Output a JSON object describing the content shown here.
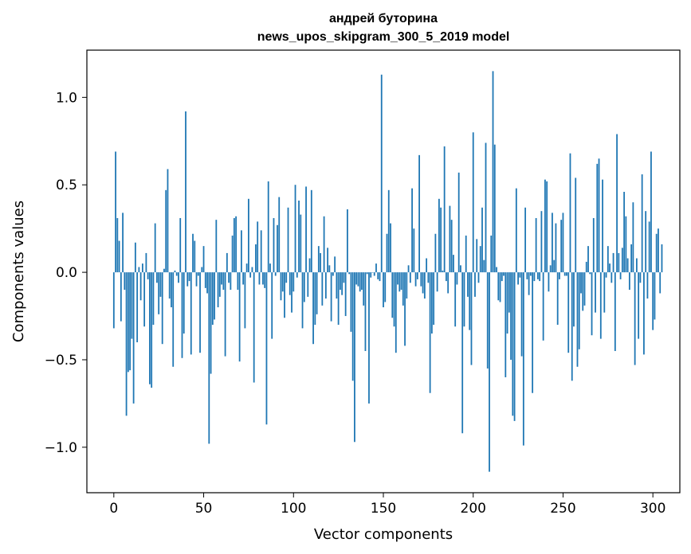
{
  "chart_data": {
    "type": "bar",
    "title": [
      "андрей буторина",
      "news_upos_skipgram_300_5_2019 model"
    ],
    "xlabel": "Vector components",
    "ylabel": "Components values",
    "xlim": [
      -15,
      315
    ],
    "ylim": [
      -1.26,
      1.27
    ],
    "xticks": [
      0,
      50,
      100,
      150,
      200,
      250,
      300
    ],
    "xtick_labels": [
      "0",
      "50",
      "100",
      "150",
      "200",
      "250",
      "300"
    ],
    "yticks": [
      -1.0,
      -0.5,
      0.0,
      0.5,
      1.0
    ],
    "ytick_labels": [
      "−1.0",
      "−0.5",
      "0.0",
      "0.5",
      "1.0"
    ],
    "bar_color": "#1f77b4",
    "grid": false,
    "values": [
      -0.32,
      0.69,
      0.31,
      0.18,
      -0.28,
      0.34,
      -0.1,
      -0.82,
      -0.57,
      -0.56,
      -0.38,
      -0.75,
      0.17,
      -0.4,
      0.03,
      -0.16,
      0.05,
      -0.31,
      0.11,
      -0.04,
      -0.64,
      -0.66,
      -0.3,
      0.28,
      -0.06,
      -0.24,
      -0.14,
      -0.41,
      0.02,
      0.47,
      0.59,
      -0.15,
      -0.2,
      -0.54,
      0.01,
      -0.02,
      -0.06,
      0.31,
      -0.49,
      -0.35,
      0.92,
      -0.08,
      -0.05,
      -0.47,
      0.22,
      0.18,
      -0.08,
      -0.02,
      -0.46,
      0.03,
      0.15,
      -0.09,
      -0.12,
      -0.98,
      -0.58,
      -0.3,
      -0.27,
      0.3,
      -0.2,
      -0.14,
      -0.07,
      -0.1,
      -0.48,
      0.11,
      -0.06,
      -0.1,
      0.21,
      0.31,
      0.32,
      -0.1,
      -0.51,
      0.24,
      -0.07,
      -0.32,
      0.05,
      0.42,
      -0.03,
      0.03,
      -0.63,
      0.16,
      0.29,
      -0.07,
      0.24,
      -0.07,
      -0.09,
      -0.87,
      0.52,
      0.05,
      -0.38,
      0.31,
      -0.02,
      0.27,
      0.43,
      -0.16,
      -0.11,
      -0.26,
      -0.06,
      0.37,
      -0.13,
      -0.23,
      -0.11,
      0.5,
      -0.03,
      0.41,
      0.33,
      -0.32,
      -0.17,
      0.49,
      -0.14,
      0.08,
      0.47,
      -0.41,
      -0.3,
      -0.24,
      0.15,
      0.11,
      -0.19,
      0.32,
      -0.15,
      0.14,
      0.04,
      -0.28,
      -0.02,
      0.09,
      -0.15,
      -0.3,
      -0.1,
      -0.13,
      -0.06,
      -0.25,
      0.36,
      -0.01,
      -0.34,
      -0.62,
      -0.97,
      -0.07,
      -0.08,
      -0.11,
      -0.1,
      -0.19,
      -0.45,
      -0.01,
      -0.75,
      -0.03,
      0.0,
      -0.02,
      0.05,
      -0.04,
      -0.05,
      1.13,
      -0.2,
      -0.17,
      0.22,
      0.47,
      0.28,
      -0.26,
      -0.31,
      -0.46,
      -0.07,
      -0.11,
      -0.1,
      -0.19,
      -0.42,
      -0.15,
      0.04,
      -0.06,
      0.48,
      0.25,
      -0.08,
      -0.04,
      0.67,
      -0.08,
      -0.12,
      -0.15,
      0.08,
      -0.06,
      -0.69,
      -0.35,
      -0.3,
      0.22,
      -0.11,
      0.42,
      0.37,
      0.01,
      0.72,
      -0.05,
      -0.12,
      0.38,
      0.3,
      0.1,
      -0.31,
      -0.07,
      0.57,
      0.04,
      -0.92,
      -0.31,
      0.21,
      -0.14,
      -0.33,
      -0.53,
      0.8,
      -0.14,
      0.19,
      -0.06,
      0.15,
      0.37,
      0.07,
      0.74,
      -0.55,
      -1.14,
      0.21,
      1.15,
      0.73,
      0.03,
      -0.16,
      -0.17,
      -0.05,
      -0.02,
      -0.6,
      -0.35,
      -0.23,
      -0.5,
      -0.82,
      -0.85,
      0.48,
      -0.07,
      -0.03,
      -0.48,
      -0.99,
      0.37,
      -0.04,
      -0.13,
      -0.02,
      -0.69,
      -0.05,
      0.31,
      -0.04,
      -0.05,
      0.35,
      -0.39,
      0.53,
      0.52,
      -0.11,
      0.04,
      0.34,
      0.07,
      0.28,
      -0.3,
      -0.04,
      0.3,
      0.34,
      -0.02,
      -0.02,
      -0.46,
      0.68,
      -0.62,
      -0.31,
      0.54,
      -0.54,
      -0.44,
      -0.12,
      -0.22,
      -0.19,
      0.06,
      0.15,
      -0.01,
      -0.36,
      0.31,
      -0.23,
      0.62,
      0.65,
      -0.38,
      0.53,
      -0.23,
      -0.03,
      0.15,
      0.05,
      -0.06,
      0.11,
      -0.45,
      0.79,
      0.11,
      -0.04,
      0.14,
      0.46,
      0.32,
      0.08,
      -0.1,
      0.16,
      0.4,
      -0.53,
      0.08,
      -0.38,
      -0.06,
      0.56,
      -0.47,
      0.35,
      -0.15,
      0.29,
      0.69,
      -0.33,
      -0.27,
      0.22,
      0.25,
      -0.12,
      0.16
    ]
  }
}
